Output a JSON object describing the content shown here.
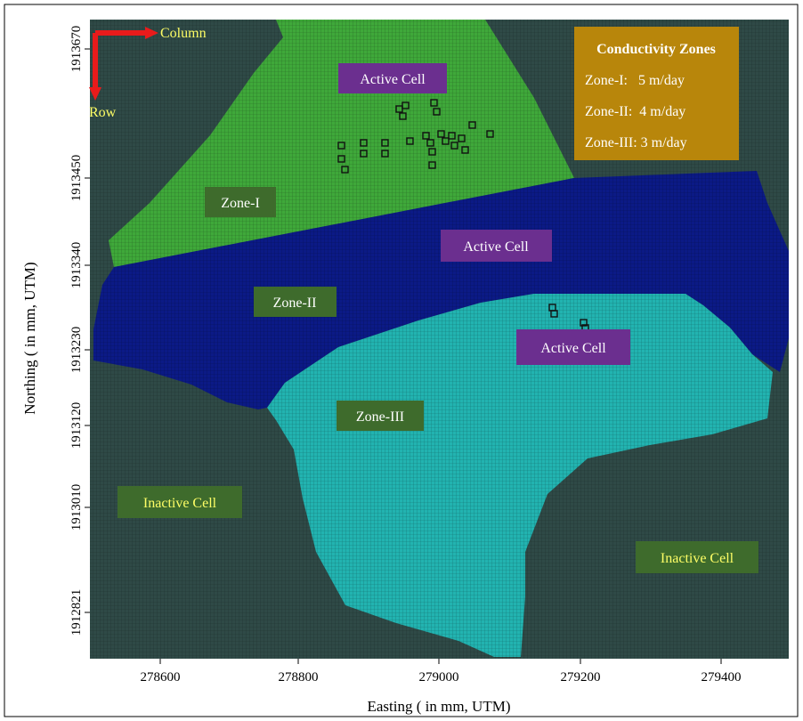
{
  "figure": {
    "x_axis_label": "Easting ( in mm, UTM)",
    "y_axis_label": "Northing ( in mm, UTM)",
    "x_ticks": [
      "278600",
      "278800",
      "279000",
      "279200",
      "279400"
    ],
    "y_ticks": [
      "1913670",
      "1913450",
      "1913340",
      "1913230",
      "1913120",
      "1913010",
      "1912821"
    ],
    "orientation": {
      "column_label": "Column",
      "row_label": "Row"
    },
    "legend": {
      "title": "Conductivity Zones",
      "rows": [
        "Zone-I:   5 m/day",
        "Zone-II:  4 m/day",
        "Zone-III: 3 m/day"
      ]
    },
    "zone_labels": {
      "zone1": "Zone-I",
      "zone2": "Zone-II",
      "zone3": "Zone-III",
      "active1": "Active Cell",
      "active2": "Active Cell",
      "active3": "Active Cell",
      "inactive1": "Inactive Cell",
      "inactive2": "Inactive Cell"
    }
  },
  "colors": {
    "inactive": "#2f4a47",
    "zone1": "#3fa83a",
    "zone2": "#0b1a86",
    "zone3": "#22b3b0",
    "legend_bg": "#b8860b",
    "active_label_bg": "#6b2f8f",
    "zone_label_bg": "#3e6b2c",
    "arrow": "#e81b1b",
    "yellow_text": "#ffff66"
  }
}
